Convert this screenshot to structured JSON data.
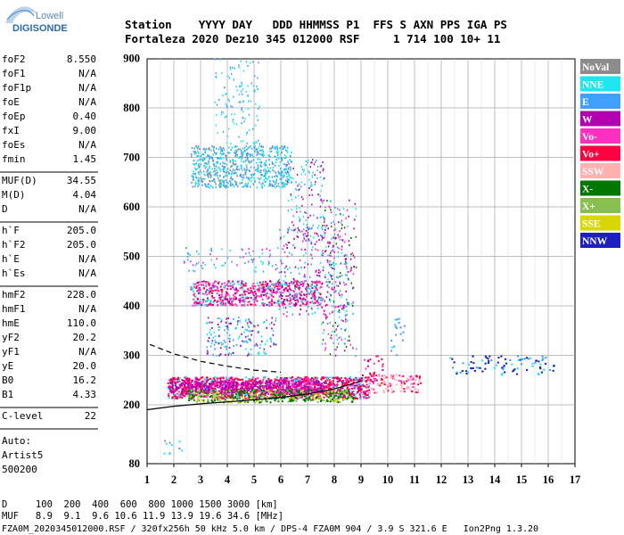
{
  "header": {
    "brand_top": "Lowell",
    "brand_bottom": "DIGISONDE",
    "row1": "Station    YYYY DAY   DDD HHMMSS P1  FFS S AXN PPS IGA PS",
    "row2": "Fortaleza 2020 Dez10 345 012000 RSF     1 714 100 10+ 11"
  },
  "params": {
    "group1": [
      {
        "label": "foF2",
        "value": "8.550"
      },
      {
        "label": "foF1",
        "value": "N/A"
      },
      {
        "label": "foF1p",
        "value": "N/A"
      },
      {
        "label": "foE",
        "value": "N/A"
      },
      {
        "label": "foEp",
        "value": "0.40"
      },
      {
        "label": "fxI",
        "value": "9.00"
      },
      {
        "label": "foEs",
        "value": "N/A"
      },
      {
        "label": "fmin",
        "value": "1.45"
      }
    ],
    "group2": [
      {
        "label": "MUF(D)",
        "value": "34.55"
      },
      {
        "label": "M(D)",
        "value": "4.04"
      },
      {
        "label": "D",
        "value": "N/A"
      }
    ],
    "group3": [
      {
        "label": "h`F",
        "value": "205.0"
      },
      {
        "label": "h`F2",
        "value": "205.0"
      },
      {
        "label": "h`E",
        "value": "N/A"
      },
      {
        "label": "h`Es",
        "value": "N/A"
      }
    ],
    "group4": [
      {
        "label": "hmF2",
        "value": "228.0"
      },
      {
        "label": "hmF1",
        "value": "N/A"
      },
      {
        "label": "hmE",
        "value": "110.0"
      },
      {
        "label": "yF2",
        "value": "20.2"
      },
      {
        "label": "yF1",
        "value": "N/A"
      },
      {
        "label": "yE",
        "value": "20.0"
      },
      {
        "label": "B0",
        "value": "16.2"
      },
      {
        "label": "B1",
        "value": "4.33"
      }
    ],
    "group5": [
      {
        "label": "C-level",
        "value": "22"
      }
    ],
    "auto": [
      "Auto:",
      "Artist5",
      "500200"
    ]
  },
  "legend": [
    {
      "label": "NoVal",
      "color": "#8c8c8c"
    },
    {
      "label": "NNE",
      "color": "#1ee6f0"
    },
    {
      "label": "E",
      "color": "#3fa0ff"
    },
    {
      "label": "W",
      "color": "#b000b0"
    },
    {
      "label": "Vo-",
      "color": "#ff2fc0"
    },
    {
      "label": "Vo+",
      "color": "#ff0040"
    },
    {
      "label": "SSW",
      "color": "#ffb0b0"
    },
    {
      "label": "X-",
      "color": "#007800"
    },
    {
      "label": "X+",
      "color": "#88c050"
    },
    {
      "label": "SSE",
      "color": "#d8d800"
    },
    {
      "label": "NNW",
      "color": "#2020c0"
    }
  ],
  "chart_data": {
    "type": "scatter",
    "x_label": "",
    "y_label": "",
    "xlim": [
      1,
      17
    ],
    "ylim": [
      80,
      900
    ],
    "x_ticks": [
      "1",
      "2",
      "3",
      "4",
      "5",
      "6",
      "7",
      "8",
      "9",
      "10",
      "11",
      "12",
      "13",
      "14",
      "15",
      "16",
      "17"
    ],
    "y_ticks": [
      "80",
      "200",
      "300",
      "400",
      "500",
      "600",
      "700",
      "800",
      "900"
    ],
    "grid": true,
    "clusters": [
      {
        "name": "F trace",
        "color": "#ff0040",
        "x": [
          1.8,
          9.2
        ],
        "y": [
          215,
          255
        ]
      },
      {
        "name": "F trace upper",
        "color": "#b000b0",
        "x": [
          1.8,
          7.5
        ],
        "y": [
          228,
          248
        ]
      },
      {
        "name": "X trace",
        "color": "#007800",
        "x": [
          2.5,
          8.5
        ],
        "y": [
          205,
          235
        ]
      },
      {
        "name": "2F echoes",
        "color": "#ff2fc0",
        "x": [
          2.5,
          7.5
        ],
        "y": [
          400,
          450
        ]
      },
      {
        "name": "3F echoes",
        "color": "#3fa0ff",
        "x": [
          2.5,
          6.5
        ],
        "y": [
          640,
          720
        ]
      },
      {
        "name": "oblique",
        "color": "#3fa0ff",
        "x": [
          12.3,
          16.2
        ],
        "y": [
          265,
          300
        ]
      }
    ],
    "curves": [
      {
        "name": "profile",
        "style": "solid",
        "x": [
          1,
          2,
          3,
          4,
          5,
          6,
          7,
          8,
          9
        ],
        "y": [
          190,
          197,
          202,
          206,
          210,
          215,
          222,
          232,
          248
        ]
      },
      {
        "name": "model",
        "style": "dashed",
        "x": [
          1.1,
          2,
          3,
          4,
          5,
          6
        ],
        "y": [
          322,
          303,
          288,
          278,
          270,
          266
        ]
      }
    ]
  },
  "footer": {
    "line1": "D     100  200  400  600  800 1000 1500 3000 [km]",
    "line2": "MUF   8.9  9.1  9.6 10.6 11.9 13.9 19.6 34.6 [MHz]",
    "line3": "FZA0M_2020345012000.RSF / 320fx256h 50 kHz 5.0 km / DPS-4 FZA0M 904 / 3.9 S 321.6 E   Ion2Png 1.3.20"
  }
}
